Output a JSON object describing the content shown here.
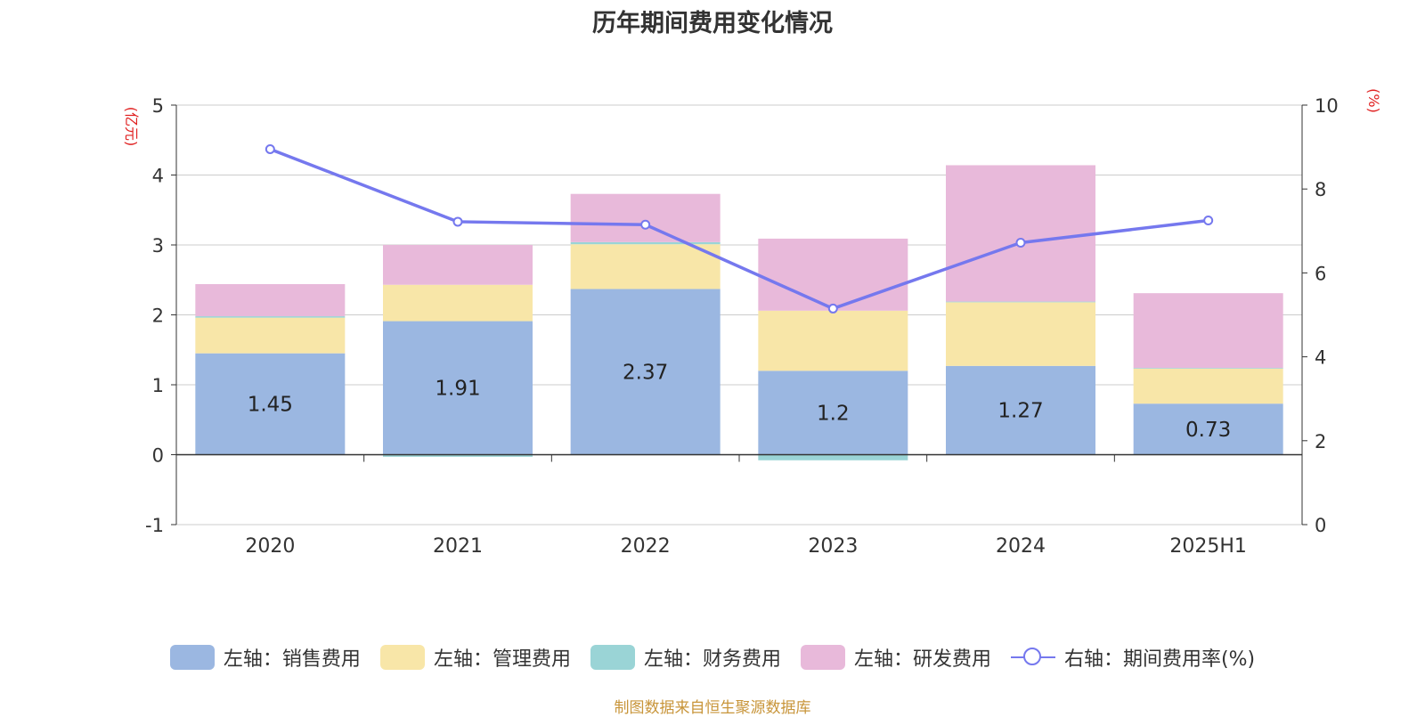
{
  "chart_data": {
    "type": "bar",
    "title": "历年期间费用变化情况",
    "categories": [
      "2020",
      "2021",
      "2022",
      "2023",
      "2024",
      "2025H1"
    ],
    "left_axis": {
      "unit_label": "(亿元)",
      "ylim": [
        -1,
        5
      ],
      "ticks": [
        "-1",
        "0",
        "1",
        "2",
        "3",
        "4",
        "5"
      ]
    },
    "right_axis": {
      "unit_label": "(%)",
      "ylim": [
        0,
        10
      ],
      "ticks": [
        "0",
        "2",
        "4",
        "6",
        "8",
        "10"
      ]
    },
    "series": [
      {
        "name": "左轴：销售费用",
        "type": "bar",
        "axis": "left",
        "color": "#9bb7e1",
        "values": [
          1.45,
          1.91,
          2.37,
          1.2,
          1.27,
          0.73
        ],
        "labels": [
          "1.45",
          "1.91",
          "2.37",
          "1.2",
          "1.27",
          "0.73"
        ]
      },
      {
        "name": "左轴：管理费用",
        "type": "bar",
        "axis": "left",
        "color": "#f8e6a8",
        "values": [
          0.51,
          0.52,
          0.64,
          0.86,
          0.91,
          0.5
        ]
      },
      {
        "name": "左轴：财务费用",
        "type": "bar",
        "axis": "left",
        "color": "#9ad4d6",
        "values": [
          0.02,
          -0.03,
          0.03,
          -0.08,
          0.01,
          0.01
        ]
      },
      {
        "name": "左轴：研发费用",
        "type": "bar",
        "axis": "left",
        "color": "#e8b9da",
        "values": [
          0.46,
          0.57,
          0.69,
          1.03,
          1.95,
          1.07
        ]
      },
      {
        "name": "右轴：期间费用率(%)",
        "type": "line",
        "axis": "right",
        "color": "#7578ee",
        "values": [
          8.95,
          7.22,
          7.15,
          5.15,
          6.72,
          7.25
        ]
      }
    ],
    "grid": true,
    "legend_position": "bottom"
  },
  "source_note": "制图数据来自恒生聚源数据库"
}
